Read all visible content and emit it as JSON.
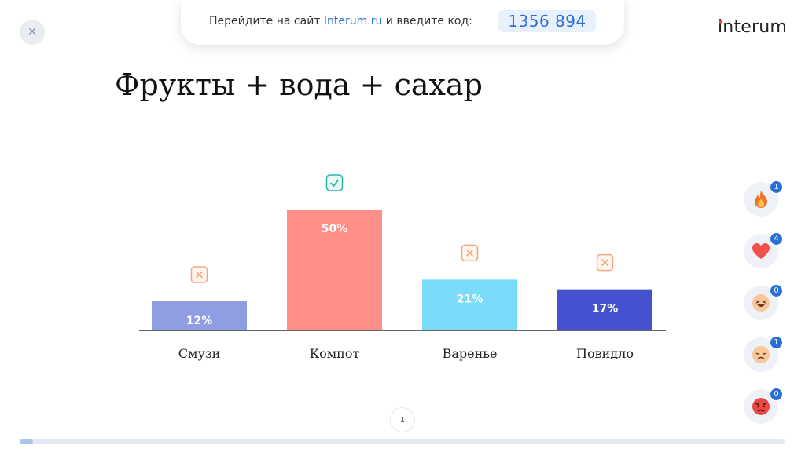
{
  "header": {
    "close_icon": "close-icon",
    "join_prefix": "Перейдите на сайт ",
    "join_link": "Interum.ru",
    "join_suffix": " и введите код:",
    "join_code": "1356 894",
    "logo_text": "interum"
  },
  "slide": {
    "title": "Фрукты + вода + сахар"
  },
  "chart_data": {
    "type": "bar",
    "categories": [
      "Смузи",
      "Компот",
      "Варенье",
      "Повидло"
    ],
    "values": [
      12,
      50,
      21,
      17
    ],
    "value_labels": [
      "12%",
      "50%",
      "21%",
      "17%"
    ],
    "correct": [
      false,
      true,
      false,
      false
    ],
    "colors": [
      "#8f9de3",
      "#ff8e86",
      "#7bdcfa",
      "#4452cf"
    ],
    "title": "",
    "xlabel": "",
    "ylabel": "",
    "ylim": [
      0,
      50
    ],
    "grid": false
  },
  "reactions": [
    {
      "icon": "fire-icon",
      "count": "1"
    },
    {
      "icon": "heart-icon",
      "count": "4"
    },
    {
      "icon": "laughing-face-icon",
      "count": "0"
    },
    {
      "icon": "sad-face-icon",
      "count": "1"
    },
    {
      "icon": "angry-face-icon",
      "count": "0"
    }
  ],
  "footer": {
    "page_number": "1",
    "progress": 0.017
  },
  "colors": {
    "accent": "#2a6fd6",
    "correct": "#2bb5a6",
    "wrong": "#f0a882"
  }
}
